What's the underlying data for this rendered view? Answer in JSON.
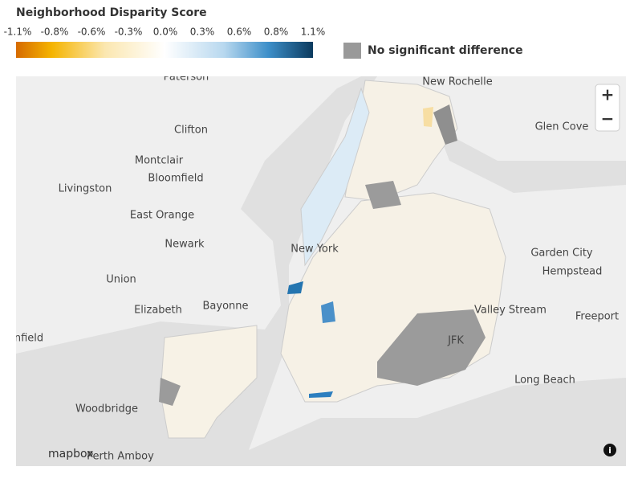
{
  "legend": {
    "title": "Neighborhood Disparity Score",
    "ticks": [
      "-1.1%",
      "-0.8%",
      "-0.6%",
      "-0.3%",
      "0.0%",
      "0.3%",
      "0.6%",
      "0.8%",
      "1.1%"
    ],
    "no_significant_label": "No significant difference"
  },
  "map": {
    "places": [
      "Paterson",
      "New Rochelle",
      "Clifton",
      "Glen Cove",
      "Montclair",
      "Bloomfield",
      "Livingston",
      "East Orange",
      "Newark",
      "New York",
      "Garden City",
      "Hempstead",
      "Union",
      "Elizabeth",
      "Bayonne",
      "Valley Stream",
      "Freeport",
      "nfield",
      "Long Beach",
      "Woodbridge",
      "Perth Amboy",
      "JFK"
    ],
    "attribution": "mapbox",
    "controls": {
      "zoom_in": "+",
      "zoom_out": "−",
      "info": "i"
    }
  }
}
